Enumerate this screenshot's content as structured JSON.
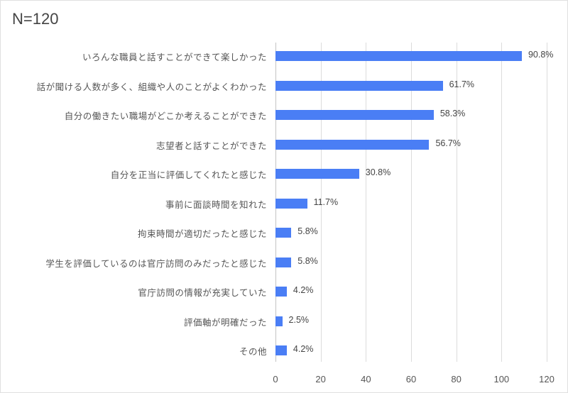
{
  "chart_data": {
    "type": "bar",
    "orientation": "horizontal",
    "title": "N=120",
    "xlabel": "",
    "ylabel": "",
    "xlim": [
      0,
      120
    ],
    "xticks": [
      0,
      20,
      40,
      60,
      80,
      100,
      120
    ],
    "grid": true,
    "legend": null,
    "bar_color": "#4a7ef5",
    "categories": [
      "いろんな職員と話すことができて楽しかった",
      "話が聞ける人数が多く、組織や人のことがよくわかった",
      "自分の働きたい職場がどこか考えることができた",
      "志望者と話すことができた",
      "自分を正当に評価してくれたと感じた",
      "事前に面談時間を知れた",
      "拘束時間が適切だったと感じた",
      "学生を評価しているのは官庁訪問のみだったと感じた",
      "官庁訪問の情報が充実していた",
      "評価軸が明確だった",
      "その他"
    ],
    "values": [
      109,
      74,
      70,
      68,
      37,
      14,
      7,
      7,
      5,
      3,
      5
    ],
    "data_labels": [
      "90.8%",
      "61.7%",
      "58.3%",
      "56.7%",
      "30.8%",
      "11.7%",
      "5.8%",
      "5.8%",
      "4.2%",
      "2.5%",
      "4.2%"
    ]
  }
}
